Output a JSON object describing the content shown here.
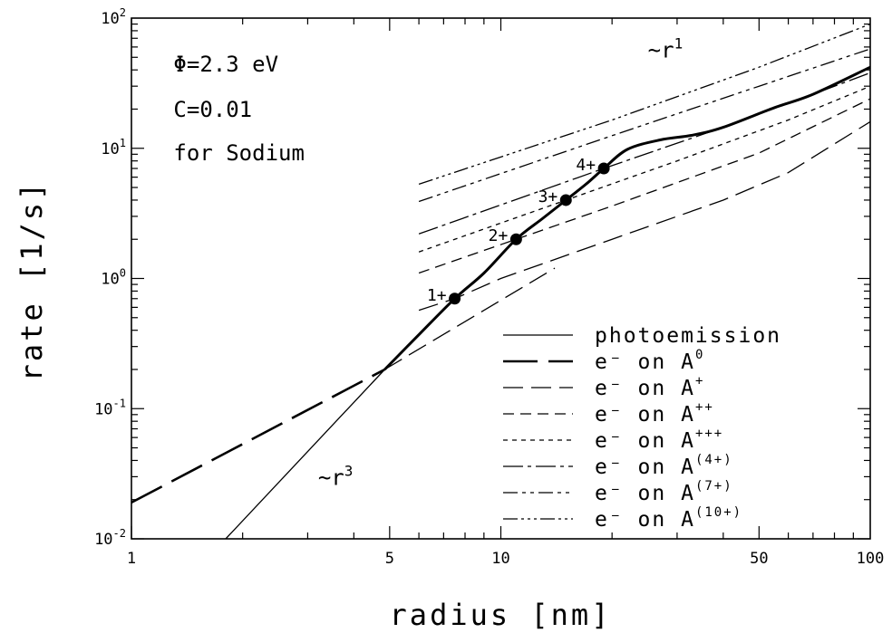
{
  "chart_data": {
    "type": "line",
    "xlabel": "radius [nm]",
    "ylabel": "rate [1/s]",
    "x_scale": "log",
    "y_scale": "log",
    "xlim": [
      1,
      100
    ],
    "ylim": [
      0.01,
      100
    ],
    "grid": false,
    "legend_position": "bottom-right",
    "x_tick_labels": [
      {
        "value": 1,
        "label": "1"
      },
      {
        "value": 5,
        "label": "5"
      },
      {
        "value": 10,
        "label": "10"
      },
      {
        "value": 50,
        "label": "50"
      },
      {
        "value": 100,
        "label": "100"
      }
    ],
    "y_tick_labels": [
      {
        "value": 0.01,
        "base": "10",
        "exp": "-2"
      },
      {
        "value": 0.1,
        "base": "10",
        "exp": "-1"
      },
      {
        "value": 1,
        "base": "10",
        "exp": "0"
      },
      {
        "value": 10,
        "base": "10",
        "exp": "1"
      },
      {
        "value": 100,
        "base": "10",
        "exp": "2"
      }
    ],
    "annotations": [
      {
        "id": "phi",
        "text": "Φ=2.3 eV",
        "x": 1.3,
        "y": 39
      },
      {
        "id": "c",
        "text": "C=0.01",
        "x": 1.3,
        "y": 17.5
      },
      {
        "id": "element",
        "text": "for Sodium",
        "x": 1.3,
        "y": 8.1
      },
      {
        "id": "r1",
        "text": "~r",
        "sup": "1",
        "x": 25,
        "y": 50
      },
      {
        "id": "r3",
        "text": "~r",
        "sup": "3",
        "x": 3.2,
        "y": 0.026
      }
    ],
    "legend": [
      {
        "label": "photoemission",
        "sup": "",
        "dash": ""
      },
      {
        "label": "e⁻ on A",
        "sup": "0",
        "dash": "38 12"
      },
      {
        "label": "e⁻ on A",
        "sup": "+",
        "dash": "22 9"
      },
      {
        "label": "e⁻ on A",
        "sup": "++",
        "dash": "12 7"
      },
      {
        "label": "e⁻ on A",
        "sup": "+++",
        "dash": "5 5"
      },
      {
        "label": "e⁻ on A",
        "sup": "(4+)",
        "dash": "22 5 4 5"
      },
      {
        "label": "e⁻ on A",
        "sup": "(7+)",
        "dash": "16 5 4 5 4 5"
      },
      {
        "label": "e⁻ on A",
        "sup": "(10+)",
        "dash": "16 4 3 4 3 4 3 4"
      }
    ],
    "series": [
      {
        "name": "photoemission",
        "style": "thin",
        "x": [
          1.8,
          4.85
        ],
        "y": [
          0.01,
          0.2
        ]
      },
      {
        "name": "e⁻ on A0",
        "style": "thick",
        "x": [
          1,
          4.85
        ],
        "y": [
          0.019,
          0.2
        ]
      },
      {
        "name": "e⁻ on A+ (low branch)",
        "style": "thin",
        "x": [
          4.85,
          14
        ],
        "y": [
          0.2,
          1.2
        ]
      },
      {
        "name": "e⁻ on A+",
        "style": "thin",
        "x": [
          6,
          7.5,
          10,
          20,
          40,
          60,
          100
        ],
        "y": [
          0.57,
          0.7,
          1.0,
          2.0,
          4.0,
          6.5,
          16
        ]
      },
      {
        "name": "e⁻ on A++",
        "style": "thin",
        "x": [
          6,
          11,
          20,
          50,
          100
        ],
        "y": [
          1.1,
          2.0,
          3.6,
          9.2,
          24
        ]
      },
      {
        "name": "e⁻ on A+++",
        "style": "thin",
        "x": [
          6,
          15,
          30,
          60,
          100
        ],
        "y": [
          1.6,
          4.0,
          8.0,
          16.5,
          30
        ]
      },
      {
        "name": "e⁻ on A(4+)",
        "style": "thin",
        "x": [
          6,
          19,
          40,
          70,
          100
        ],
        "y": [
          2.2,
          7.0,
          14.5,
          26,
          38
        ]
      },
      {
        "name": "e⁻ on A(7+)",
        "style": "thin",
        "x": [
          6,
          20,
          50,
          100
        ],
        "y": [
          3.9,
          12.5,
          30,
          58
        ]
      },
      {
        "name": "e⁻ on A(10+)",
        "style": "thin",
        "x": [
          6,
          20,
          50,
          100
        ],
        "y": [
          5.3,
          16.5,
          42,
          90
        ]
      },
      {
        "name": "total (bold)",
        "style": "bold",
        "x": [
          4.85,
          6,
          7.5,
          9,
          11,
          13,
          15,
          17,
          19,
          22,
          27,
          33,
          40,
          55,
          70,
          100
        ],
        "y": [
          0.2,
          0.37,
          0.7,
          1.1,
          2.0,
          2.9,
          4.0,
          5.3,
          7.0,
          9.8,
          11.6,
          12.6,
          14.5,
          20.5,
          26,
          42
        ]
      }
    ],
    "markers": [
      {
        "x": 7.5,
        "y": 0.7,
        "label": "1+"
      },
      {
        "x": 11,
        "y": 2.0,
        "label": "2+"
      },
      {
        "x": 15,
        "y": 4.0,
        "label": "3+"
      },
      {
        "x": 19,
        "y": 7.0,
        "label": "4+"
      }
    ]
  }
}
